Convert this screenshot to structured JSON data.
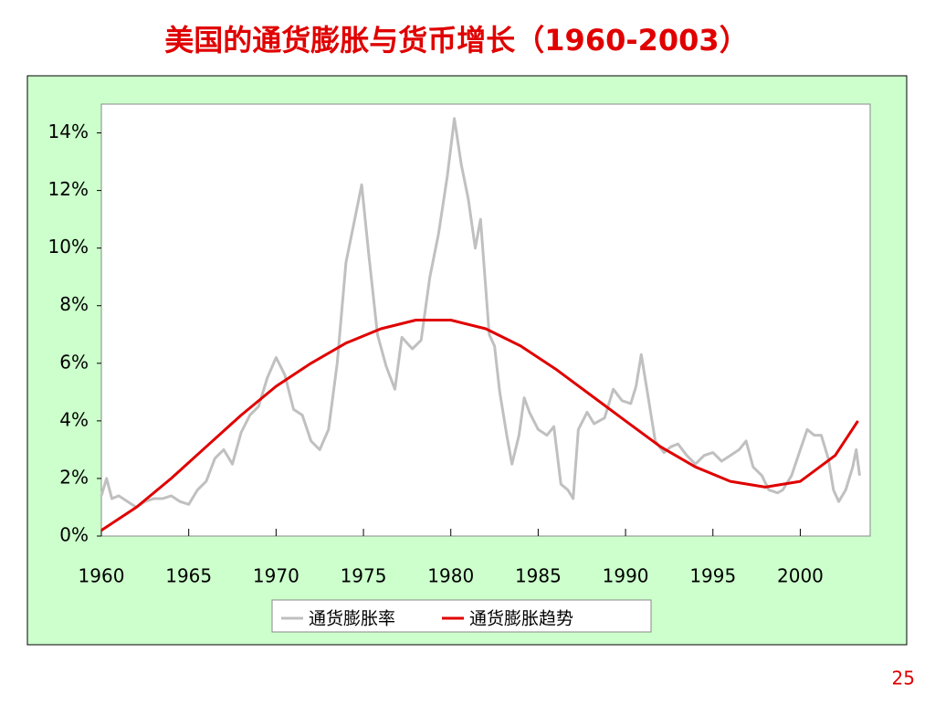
{
  "chart_data": {
    "type": "line",
    "title": "美国的通货膨胀与货币增长（1960-2003）",
    "page_number": "25",
    "xlim": [
      1960,
      2004
    ],
    "xticks": [
      1960,
      1965,
      1970,
      1975,
      1980,
      1985,
      1990,
      1995,
      2000
    ],
    "ylim": [
      0,
      15
    ],
    "yticks": [
      {
        "value": 0,
        "label": "0%"
      },
      {
        "value": 2,
        "label": "2%"
      },
      {
        "value": 4,
        "label": "4%"
      },
      {
        "value": 6,
        "label": "6%"
      },
      {
        "value": 8,
        "label": "8%"
      },
      {
        "value": 10,
        "label": "10%"
      },
      {
        "value": 12,
        "label": "12%"
      },
      {
        "value": 14,
        "label": "14%"
      }
    ],
    "legend": "bottom",
    "series": [
      {
        "name": "通货膨胀率",
        "color": "#c0c0c0",
        "x": [
          1960,
          1960.3,
          1960.6,
          1961,
          1961.5,
          1962,
          1962.5,
          1963,
          1963.5,
          1964,
          1964.5,
          1965,
          1965.5,
          1966,
          1966.5,
          1967,
          1967.5,
          1968,
          1968.5,
          1969,
          1969.5,
          1970,
          1970.5,
          1971,
          1971.5,
          1972,
          1972.5,
          1973,
          1973.5,
          1974,
          1974.5,
          1974.9,
          1975.3,
          1975.8,
          1976.3,
          1976.8,
          1977.2,
          1977.8,
          1978.3,
          1978.8,
          1979.3,
          1979.8,
          1980.2,
          1980.6,
          1981,
          1981.4,
          1981.7,
          1982.2,
          1982.5,
          1982.8,
          1983.2,
          1983.5,
          1983.9,
          1984.2,
          1984.5,
          1985,
          1985.5,
          1985.9,
          1986.3,
          1986.7,
          1987,
          1987.3,
          1987.8,
          1988.2,
          1988.8,
          1989.3,
          1989.8,
          1990.3,
          1990.6,
          1990.9,
          1991.3,
          1991.7,
          1992.2,
          1992.6,
          1993,
          1993.5,
          1994,
          1994.5,
          1995,
          1995.5,
          1996,
          1996.5,
          1996.9,
          1997.3,
          1997.8,
          1998.2,
          1998.7,
          1999,
          1999.5,
          2000,
          2000.4,
          2000.8,
          2001.2,
          2001.6,
          2001.9,
          2002.2,
          2002.6,
          2003,
          2003.2,
          2003.4
        ],
        "values": [
          1.4,
          2.0,
          1.3,
          1.4,
          1.2,
          1.0,
          1.2,
          1.3,
          1.3,
          1.4,
          1.2,
          1.1,
          1.6,
          1.9,
          2.7,
          3.0,
          2.5,
          3.6,
          4.2,
          4.5,
          5.5,
          6.2,
          5.6,
          4.4,
          4.2,
          3.3,
          3.0,
          3.7,
          6.0,
          9.5,
          11.0,
          12.2,
          9.8,
          7.0,
          5.9,
          5.1,
          6.9,
          6.5,
          6.8,
          9.0,
          10.5,
          12.5,
          14.5,
          12.9,
          11.7,
          10.0,
          11.0,
          7.0,
          6.6,
          5.0,
          3.5,
          2.5,
          3.5,
          4.8,
          4.3,
          3.7,
          3.5,
          3.8,
          1.8,
          1.6,
          1.3,
          3.7,
          4.3,
          3.9,
          4.1,
          5.1,
          4.7,
          4.6,
          5.2,
          6.3,
          4.8,
          3.3,
          2.9,
          3.1,
          3.2,
          2.8,
          2.5,
          2.8,
          2.9,
          2.6,
          2.8,
          3.0,
          3.3,
          2.4,
          2.1,
          1.6,
          1.5,
          1.6,
          2.1,
          3.0,
          3.7,
          3.5,
          3.5,
          2.7,
          1.6,
          1.2,
          1.6,
          2.4,
          3.0,
          2.1
        ]
      },
      {
        "name": "通货膨胀趋势",
        "color": "#e00000",
        "x": [
          1960,
          1962,
          1964,
          1966,
          1968,
          1970,
          1972,
          1974,
          1976,
          1978,
          1980,
          1982,
          1984,
          1986,
          1988,
          1990,
          1992,
          1994,
          1996,
          1998,
          2000,
          2002,
          2003.3
        ],
        "values": [
          0.2,
          1.0,
          2.0,
          3.1,
          4.2,
          5.2,
          6.0,
          6.7,
          7.2,
          7.5,
          7.5,
          7.2,
          6.6,
          5.8,
          4.9,
          4.0,
          3.1,
          2.4,
          1.9,
          1.7,
          1.9,
          2.8,
          4.0
        ]
      }
    ]
  }
}
